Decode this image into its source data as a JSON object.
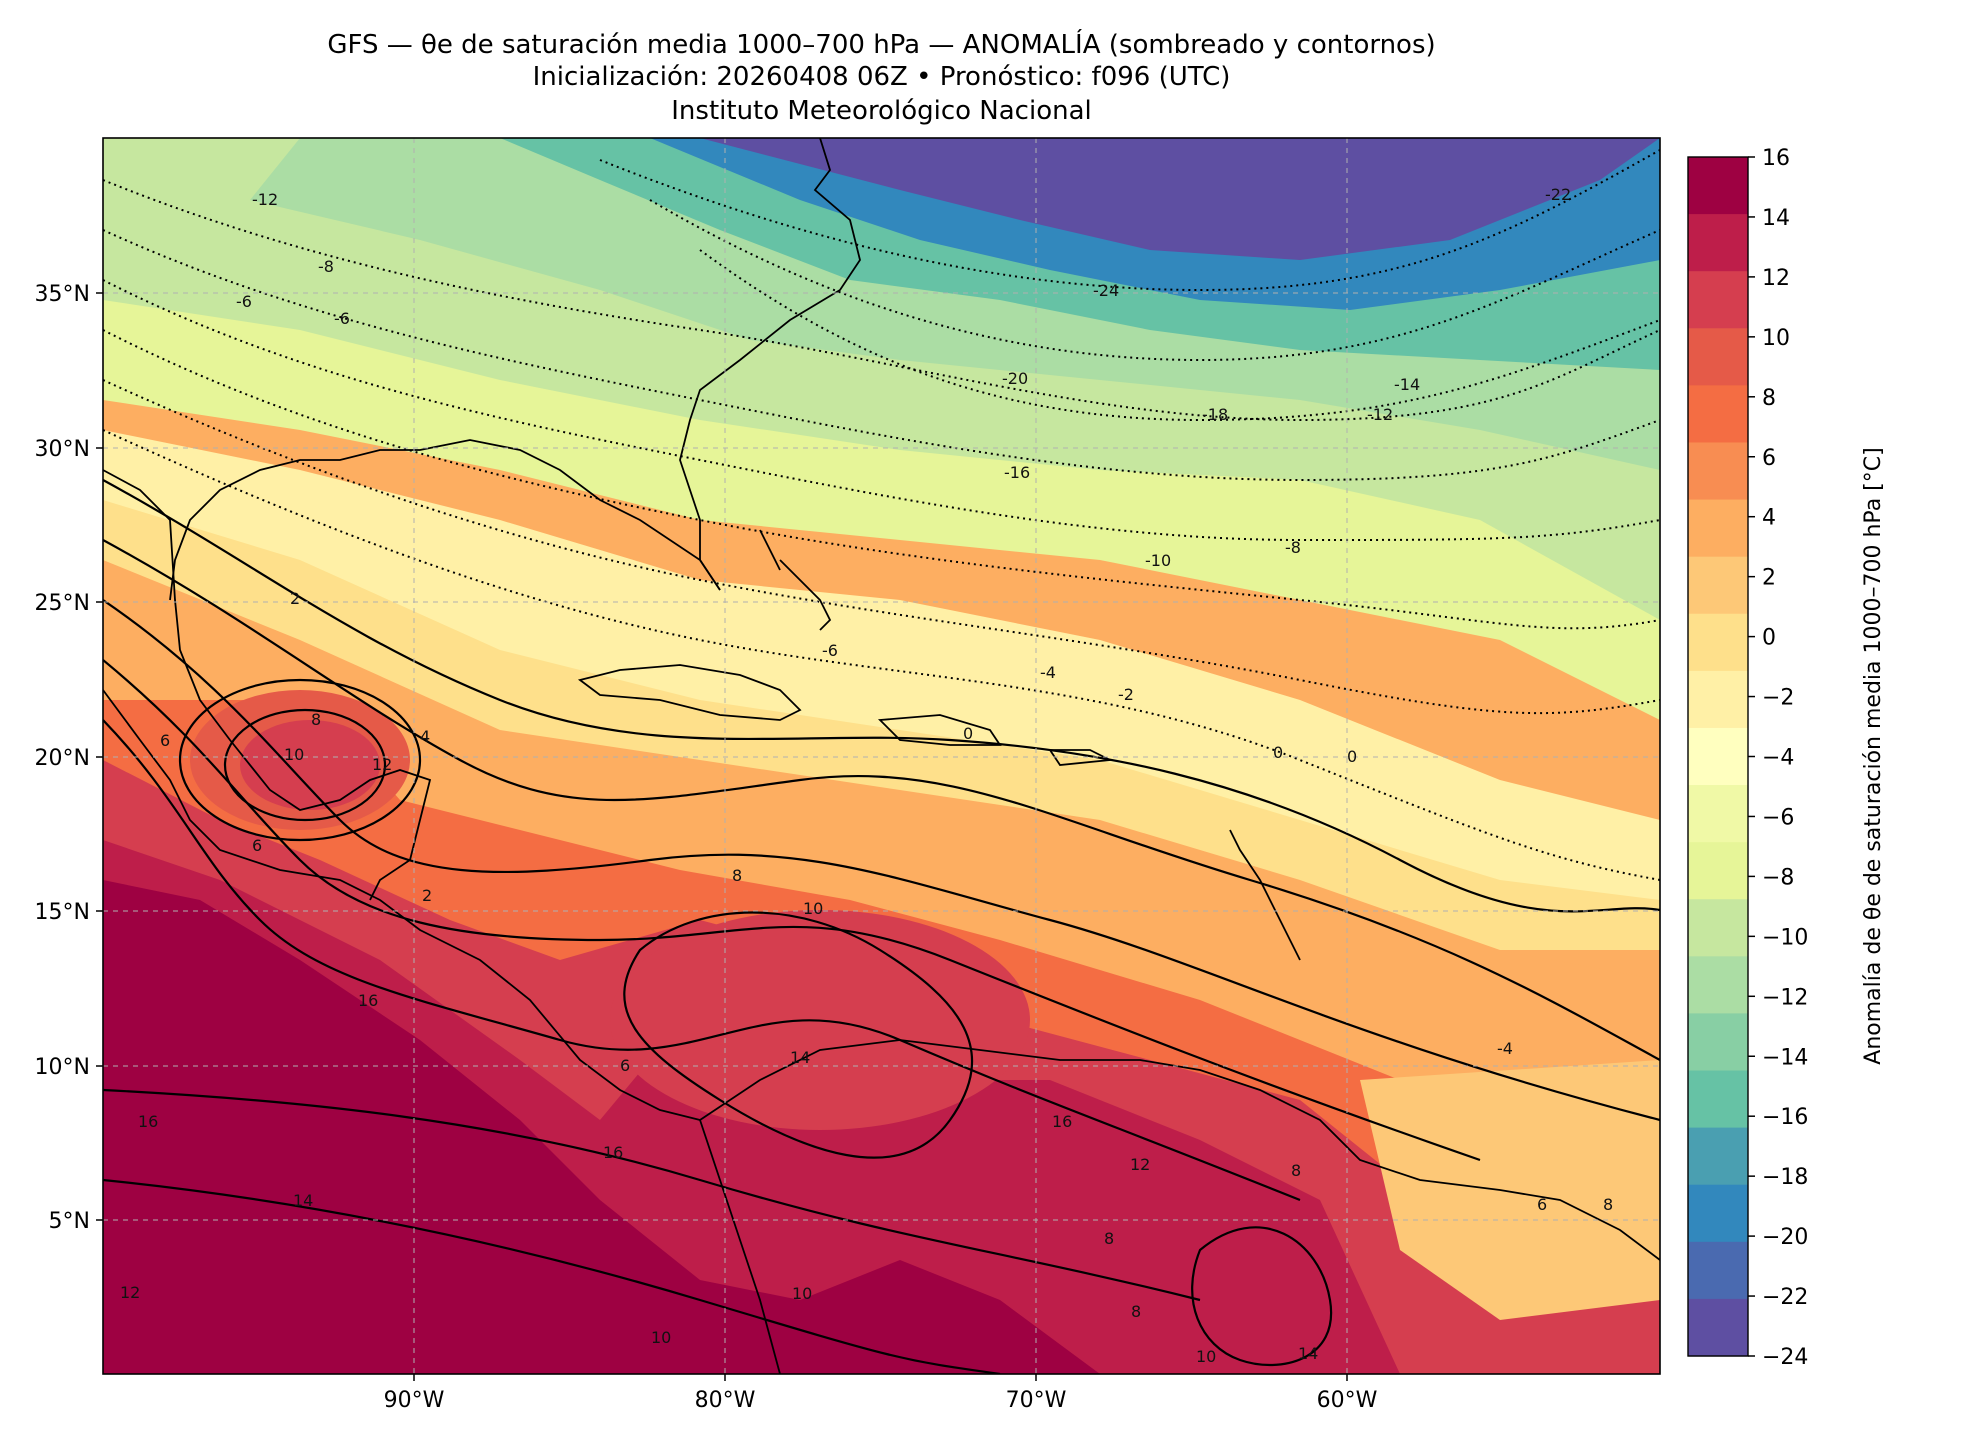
{
  "title": {
    "line1": "GFS — θe de saturación media 1000–700 hPa — ANOMALÍA (sombreado y contornos)",
    "line2": "Inicialización: 20260408 06Z   •   Pronóstico: f096 (UTC)",
    "line3": "Instituto Meteorológico Nacional"
  },
  "map": {
    "lon_range": [
      -100,
      -50
    ],
    "lat_range": [
      0,
      40
    ],
    "lat_ticks": [
      "35°N",
      "30°N",
      "25°N",
      "20°N",
      "15°N",
      "10°N",
      "5°N"
    ],
    "lon_ticks": [
      "90°W",
      "80°W",
      "70°W",
      "60°W"
    ],
    "gridlines": "dashed"
  },
  "colorbar": {
    "label": "Anomalía de θe de saturación media 1000–700 hPa [°C]",
    "ticks": [
      "16",
      "14",
      "12",
      "10",
      "8",
      "6",
      "4",
      "2",
      "0",
      "−2",
      "−4",
      "−6",
      "−8",
      "−10",
      "−12",
      "−14",
      "−16",
      "−18",
      "−20",
      "−22",
      "−24"
    ],
    "colors": [
      "#9e0142",
      "#be1e4a",
      "#d53e4f",
      "#e55a48",
      "#f46d43",
      "#f88d52",
      "#fdae61",
      "#fdc877",
      "#fee08b",
      "#fff0a6",
      "#ffffbf",
      "#f0f9a6",
      "#e6f598",
      "#c6e79f",
      "#abdda4",
      "#88cfa4",
      "#66c2a5",
      "#4a9fb1",
      "#3288bd",
      "#4a6ab0",
      "#5e4fa2"
    ]
  },
  "contour_labels": [
    {
      "text": "-12"
    },
    {
      "text": "-8"
    },
    {
      "text": "-6"
    },
    {
      "text": "-6"
    },
    {
      "text": "-24"
    },
    {
      "text": "-22"
    },
    {
      "text": "-20"
    },
    {
      "text": "-18"
    },
    {
      "text": "-14"
    },
    {
      "text": "-12"
    },
    {
      "text": "-16"
    },
    {
      "text": "-10"
    },
    {
      "text": "-8"
    },
    {
      "text": "-6"
    },
    {
      "text": "-4"
    },
    {
      "text": "-2"
    },
    {
      "text": "0"
    },
    {
      "text": "0"
    },
    {
      "text": "0"
    },
    {
      "text": "2"
    },
    {
      "text": "8"
    },
    {
      "text": "10"
    },
    {
      "text": "12"
    },
    {
      "text": "6"
    },
    {
      "text": "6"
    },
    {
      "text": "2"
    },
    {
      "text": "4"
    },
    {
      "text": "8"
    },
    {
      "text": "10"
    },
    {
      "text": "16"
    },
    {
      "text": "16"
    },
    {
      "text": "16"
    },
    {
      "text": "14"
    },
    {
      "text": "12"
    },
    {
      "text": "10"
    },
    {
      "text": "14"
    },
    {
      "text": "16"
    },
    {
      "text": "12"
    },
    {
      "text": "8"
    },
    {
      "text": "8"
    },
    {
      "text": "6"
    },
    {
      "text": "8"
    },
    {
      "text": "14"
    },
    {
      "text": "10"
    },
    {
      "text": "10"
    },
    {
      "text": "-4"
    },
    {
      "text": "6"
    },
    {
      "text": "8"
    }
  ]
}
